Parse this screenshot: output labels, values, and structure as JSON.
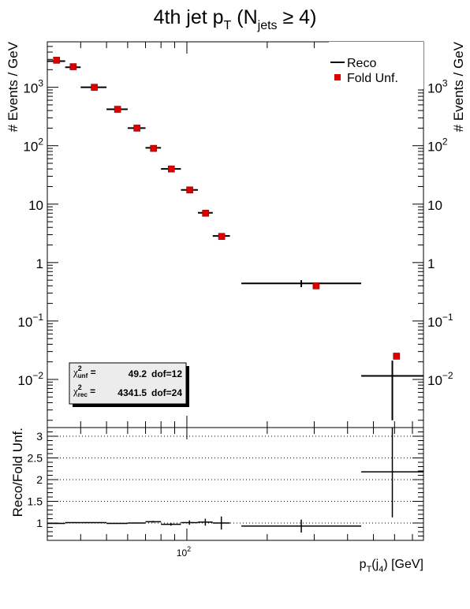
{
  "chart_data": [
    {
      "type": "scatter",
      "panel": "main",
      "title": "4th jet p",
      "title_sub": "T",
      "title_paren": "(N",
      "title_paren_sub": "jets",
      "title_tail": "≥ 4)",
      "ylabel": "# Events / GeV",
      "yscale": "log",
      "ylim": [
        0.0015,
        6000
      ],
      "xscale": "log",
      "xlim": [
        30,
        770
      ],
      "y_tick_labels": [
        {
          "value": 0.01,
          "base": "10",
          "exp": "−2"
        },
        {
          "value": 0.1,
          "base": "10",
          "exp": "−1"
        },
        {
          "value": 1,
          "base": "1",
          "exp": ""
        },
        {
          "value": 10,
          "base": "10",
          "exp": ""
        },
        {
          "value": 100,
          "base": "10",
          "exp": "2"
        },
        {
          "value": 1000,
          "base": "10",
          "exp": "3"
        }
      ],
      "legend": {
        "placement": "top-right",
        "entries": [
          {
            "label": "Reco",
            "style": "line",
            "color": "#000000"
          },
          {
            "label": "Fold Unf.",
            "style": "marker",
            "color": "#dd0000"
          }
        ]
      },
      "stats_box": {
        "chi2_label": "χ",
        "chi2_sup": "2",
        "rows": [
          {
            "sub": "unf",
            "eq": "=",
            "value": "49.2",
            "dof": "dof=12"
          },
          {
            "sub": "rec",
            "eq": "=",
            "value": "4341.5",
            "dof": "dof=24"
          }
        ]
      },
      "series": [
        {
          "name": "Reco",
          "points": [
            {
              "xlo": 30,
              "xhi": 35,
              "y": 2800,
              "yerr": 0
            },
            {
              "xlo": 35,
              "xhi": 40,
              "y": 2200,
              "yerr": 0
            },
            {
              "xlo": 40,
              "xhi": 50,
              "y": 1000,
              "yerr": 0
            },
            {
              "xlo": 50,
              "xhi": 60,
              "y": 420,
              "yerr": 0
            },
            {
              "xlo": 60,
              "xhi": 70,
              "y": 200,
              "yerr": 0
            },
            {
              "xlo": 70,
              "xhi": 80,
              "y": 92,
              "yerr": 0
            },
            {
              "xlo": 80,
              "xhi": 95,
              "y": 40,
              "yerr": 0
            },
            {
              "xlo": 95,
              "xhi": 110,
              "y": 17.5,
              "yerr": 0
            },
            {
              "xlo": 110,
              "xhi": 125,
              "y": 7.1,
              "yerr": 0
            },
            {
              "xlo": 125,
              "xhi": 145,
              "y": 2.85,
              "yerr": 0.3
            },
            {
              "xlo": 160,
              "xhi": 450,
              "y": 0.44,
              "yerr": 0.06
            },
            {
              "xlo": 450,
              "xhi": 770,
              "y": 0.0115,
              "yerr": 0.0095
            }
          ]
        },
        {
          "name": "Fold Unf.",
          "points": [
            {
              "x": 32.5,
              "y": 2900
            },
            {
              "x": 37.5,
              "y": 2250
            },
            {
              "x": 45,
              "y": 1000
            },
            {
              "x": 55,
              "y": 420
            },
            {
              "x": 65,
              "y": 200
            },
            {
              "x": 75,
              "y": 90
            },
            {
              "x": 87.5,
              "y": 40
            },
            {
              "x": 102.5,
              "y": 17.5
            },
            {
              "x": 117.5,
              "y": 7.0
            },
            {
              "x": 135,
              "y": 2.8
            },
            {
              "x": 305,
              "y": 0.4
            },
            {
              "x": 610,
              "y": 0.025
            }
          ]
        }
      ]
    },
    {
      "type": "scatter",
      "panel": "ratio",
      "ylabel": "Reco/Fold Unf.",
      "ylim": [
        0.6,
        3.2
      ],
      "xscale": "log",
      "xlim": [
        30,
        770
      ],
      "xlabel": "p",
      "xlabel_sub": "T",
      "xlabel_mid": "(j",
      "xlabel_mid_sub": "4",
      "xlabel_tail": ") [GeV]",
      "x_tick_labels": [
        {
          "value": 100,
          "base": "10",
          "exp": "2"
        }
      ],
      "y_tick_labels": [
        {
          "value": 1,
          "label": "1"
        },
        {
          "value": 1.5,
          "label": "1.5"
        },
        {
          "value": 2,
          "label": "2"
        },
        {
          "value": 2.5,
          "label": "2.5"
        },
        {
          "value": 3,
          "label": "3"
        }
      ],
      "gridlines_y": [
        1,
        1.5,
        2,
        2.5,
        3
      ],
      "grid": "dotted horizontal",
      "series": [
        {
          "name": "Reco/Fold Unf.",
          "points": [
            {
              "xlo": 30,
              "xhi": 35,
              "y": 0.99,
              "yerr": 0.01
            },
            {
              "xlo": 35,
              "xhi": 40,
              "y": 1.01,
              "yerr": 0.01
            },
            {
              "xlo": 40,
              "xhi": 50,
              "y": 1.01,
              "yerr": 0.01
            },
            {
              "xlo": 50,
              "xhi": 60,
              "y": 0.99,
              "yerr": 0.01
            },
            {
              "xlo": 60,
              "xhi": 70,
              "y": 1.0,
              "yerr": 0.01
            },
            {
              "xlo": 70,
              "xhi": 80,
              "y": 1.03,
              "yerr": 0.02
            },
            {
              "xlo": 80,
              "xhi": 95,
              "y": 0.97,
              "yerr": 0.03
            },
            {
              "xlo": 95,
              "xhi": 110,
              "y": 1.01,
              "yerr": 0.05
            },
            {
              "xlo": 110,
              "xhi": 125,
              "y": 1.02,
              "yerr": 0.08
            },
            {
              "xlo": 125,
              "xhi": 145,
              "y": 1.0,
              "yerr": 0.15
            },
            {
              "xlo": 160,
              "xhi": 450,
              "y": 0.93,
              "yerr": 0.15
            },
            {
              "xlo": 450,
              "xhi": 770,
              "y": 2.18,
              "yerr": 1.05
            }
          ]
        }
      ]
    }
  ]
}
